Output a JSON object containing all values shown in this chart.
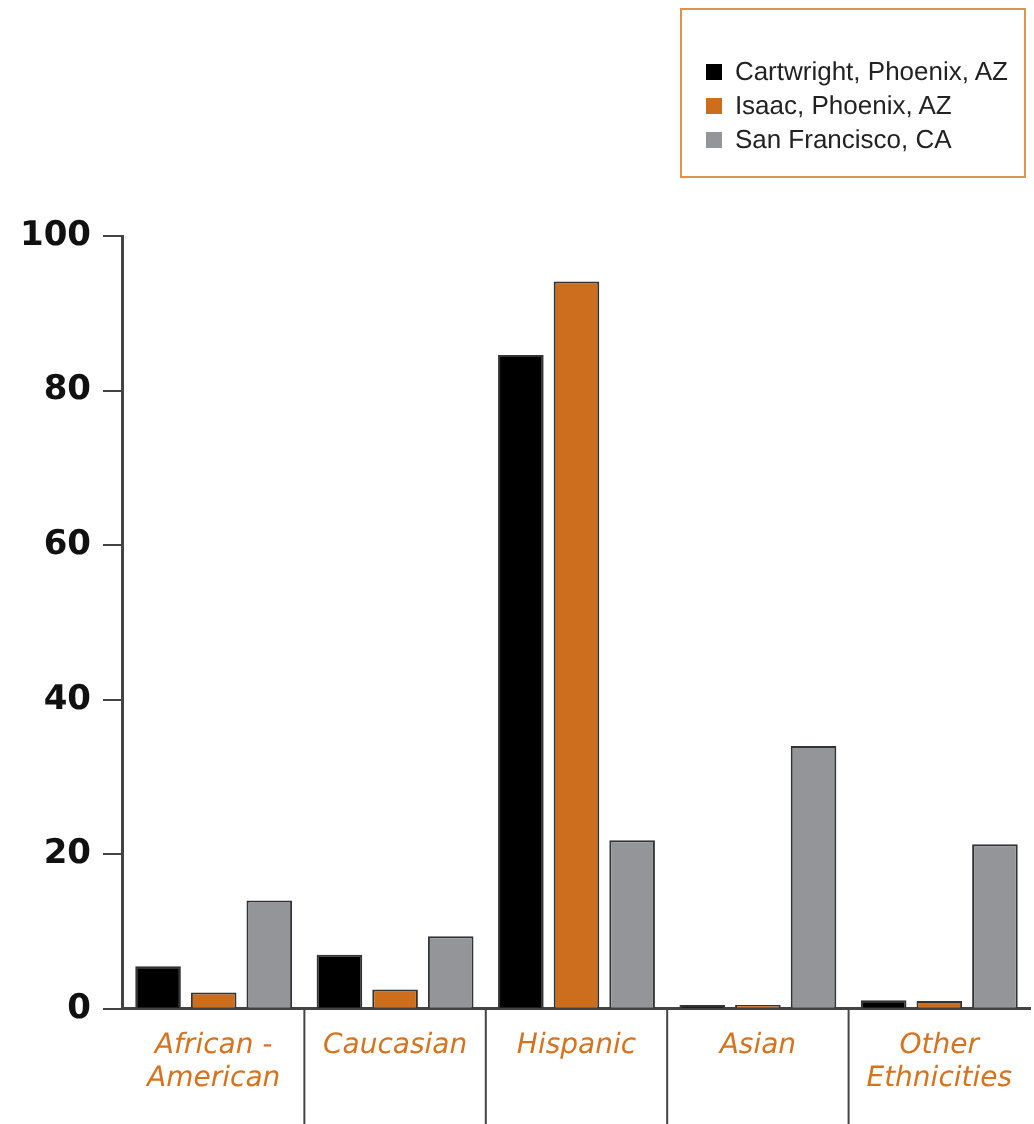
{
  "chart_data": {
    "type": "bar",
    "categories": [
      "African - American",
      "Caucasian",
      "Hispanic",
      "Asian",
      "Other Ethnicities"
    ],
    "series": [
      {
        "name": "Cartwright, Phoenix, AZ",
        "color": "#000000",
        "values": [
          5.5,
          7.0,
          84.6,
          0.5,
          1.1
        ]
      },
      {
        "name": "Isaac, Phoenix, AZ",
        "color": "#cc6e1e",
        "values": [
          2.1,
          2.5,
          94.1,
          0.5,
          1.0
        ]
      },
      {
        "name": "San Francisco, CA",
        "color": "#939598",
        "values": [
          14.0,
          9.4,
          21.8,
          34.0,
          21.3
        ]
      }
    ],
    "ylim": [
      0,
      100
    ],
    "yticks": [
      0,
      20,
      40,
      60,
      80,
      100
    ],
    "legend": "top right"
  }
}
